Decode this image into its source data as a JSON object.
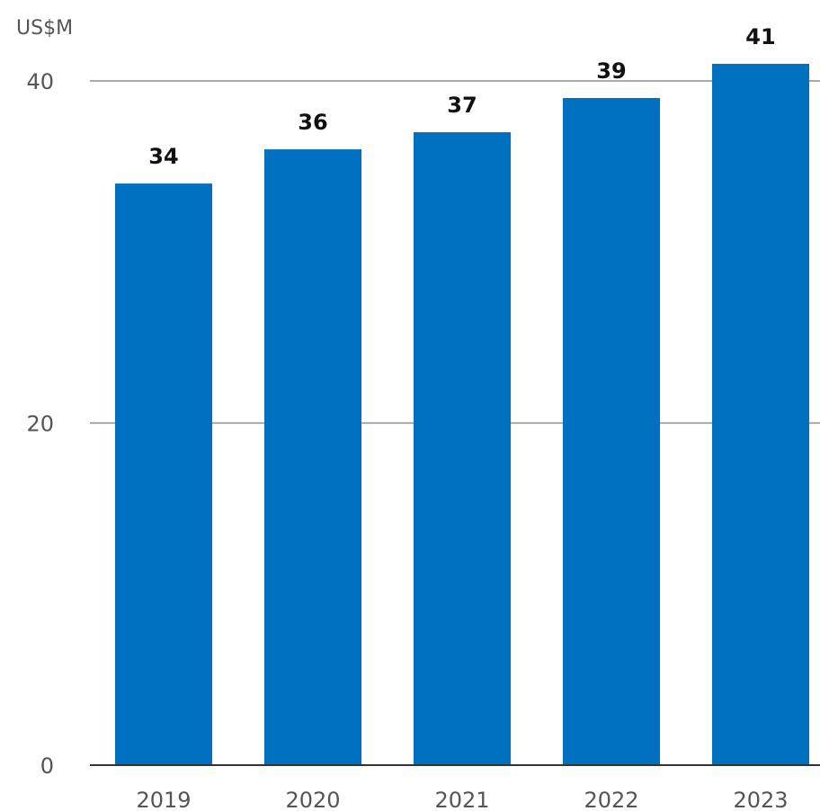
{
  "chart_data": {
    "type": "bar",
    "unit_label": "US$M",
    "categories": [
      "2019",
      "2020",
      "2021",
      "2022",
      "2023"
    ],
    "values": [
      34,
      36,
      37,
      39,
      41
    ],
    "data_labels": [
      "34",
      "36",
      "37",
      "39",
      "41"
    ],
    "ylim": [
      0,
      41.5
    ],
    "yticks": [
      0,
      20,
      40
    ],
    "ytick_labels": [
      "0",
      "20",
      "40"
    ],
    "grid": true,
    "bar_color": "#0070c0"
  }
}
